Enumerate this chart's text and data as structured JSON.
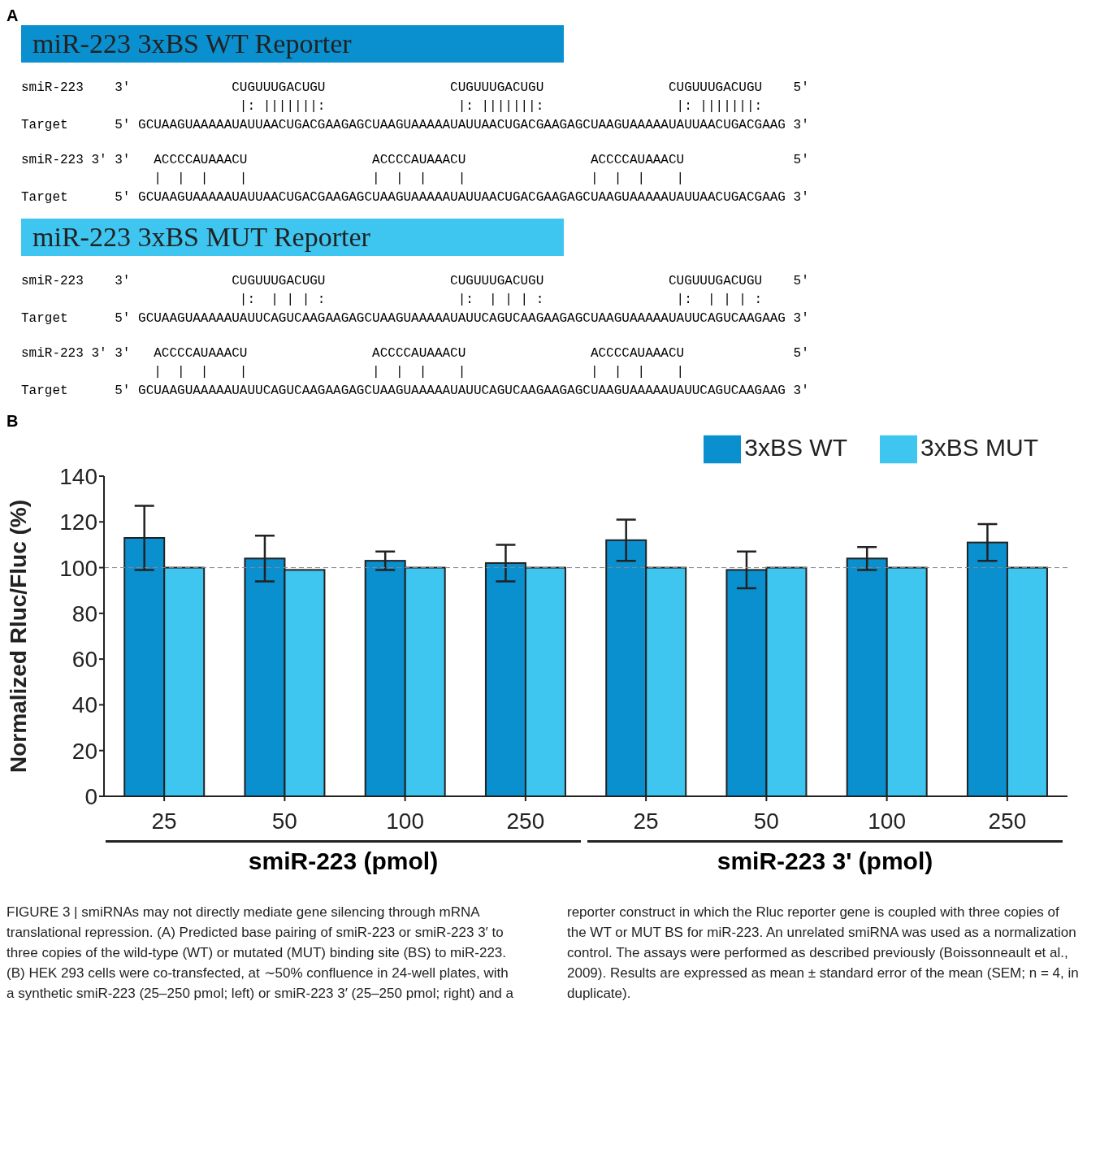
{
  "chart_data": [
    {
      "type": "other",
      "title": "miR-223 3xBS WT Reporter",
      "color": "#0a8fcf",
      "annotations": [
        "A",
        "smiR-223    3′             CUGUUUGACUGU                CUGUUUGACUGU                CUGUUUGACUGU    5′",
        "                            |: |||||||:                 |: |||||||:                 |: |||||||:",
        "Target      5′ GCUAAGUAAAAAUAUUAACUGACGAAGAGCUAAGUAAAAAUAUUAACUGACGAAGAGCUAAGUAAAAAUAUUAACUGACGAAG 3′",
        "smiR-223 3′ 3′   ACCCCAUAAACU                ACCCCAUAAACU                ACCCCAUAAACU              5′",
        "                 |  |  |    |                |  |  |    |                |  |  |    |",
        "Target      5′ GCUAAGUAAAAAUAUUAACUGACGAAGAGCUAAGUAAAAAUAUUAACUGACGAAGAGCUAAGUAAAAAUAUUAACUGACGAAG 3′"
      ]
    },
    {
      "type": "other",
      "title": "miR-223 3xBS MUT Reporter",
      "color": "#3ec5f0",
      "annotations": [
        "smiR-223    3′             CUGUUUGACUGU                CUGUUUGACUGU                CUGUUUGACUGU    5′",
        "                            |:  | | | :                 |:  | | | :                 |:  | | | :",
        "Target      5′ GCUAAGUAAAAAUAUUCAGUCAAGAAGAGCUAAGUAAAAAUAUUCAGUCAAGAAGAGCUAAGUAAAAAUAUUCAGUCAAGAAG 3′",
        "smiR-223 3′ 3′   ACCCCAUAAACU                ACCCCAUAAACU                ACCCCAUAAACU              5′",
        "                 |  |  |    |                |  |  |    |                |  |  |    |",
        "Target      5′ GCUAAGUAAAAAUAUUCAGUCAAGAAGAGCUAAGUAAAAAUAUUCAGUCAAGAAGAGCUAAGUAAAAAUAUUCAGUCAAGAAG 3′"
      ]
    },
    {
      "type": "bar",
      "ylabel": "Normalized Rluc/Fluc (%)",
      "categories": [
        "25",
        "50",
        "100",
        "250",
        "25",
        "50",
        "100",
        "250"
      ],
      "series": [
        {
          "name": "3xBS WT",
          "color": "#0a8fcf",
          "values": [
            113,
            104,
            103,
            102,
            112,
            99,
            104,
            111
          ],
          "errors": [
            14,
            10,
            4,
            8,
            9,
            8,
            5,
            8
          ]
        },
        {
          "name": "3xBS MUT",
          "color": "#3ec5f0",
          "values": [
            100,
            99,
            100,
            100,
            100,
            100,
            100,
            100
          ]
        }
      ],
      "ylim": [
        0,
        140
      ],
      "yticks": [
        0,
        20,
        40,
        60,
        80,
        100,
        120,
        140
      ],
      "ref_lines": [
        {
          "axis": "y",
          "value": 100,
          "color": "#888888",
          "line_style": "dashed"
        }
      ],
      "legend": "top right",
      "annotations": [
        "B",
        "smiR-223 (pmol)",
        "smiR-223 3' (pmol)",
        "FIGURE 3 | smiRNAs may not directly mediate gene silencing through mRNA translational repression. (A) Predicted base pairing of smiR-223 or smiR-223 3′ to three copies of the wild-type (WT) or mutated (MUT) binding site (BS) to miR-223. (B) HEK 293 cells were co-transfected, at ∼50% confluence in 24-well plates, with a synthetic smiR-223 (25–250 pmol; left) or smiR-223 3′ (25–250 pmol; right) and a reporter construct in which the Rluc reporter gene is coupled with three copies of the WT or MUT BS for miR-223. An unrelated smiRNA was used as a normalization control. The assays were performed as described previously (Boissonneault et al., 2009). Results are expressed as mean ± standard error of the mean (SEM; n = 4, in duplicate)."
      ]
    }
  ]
}
